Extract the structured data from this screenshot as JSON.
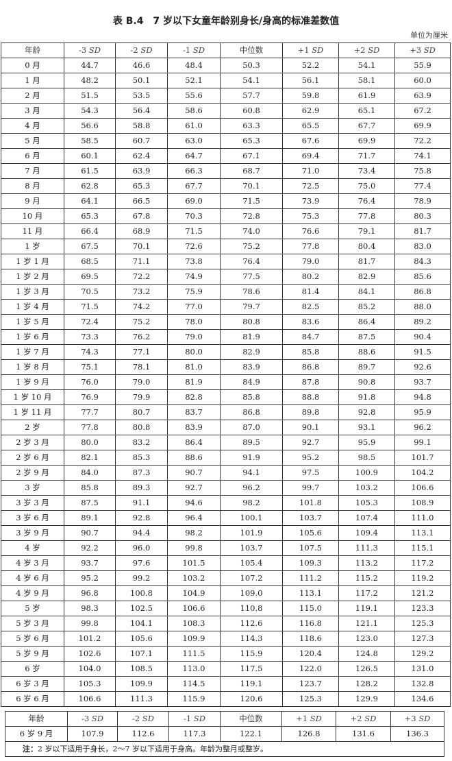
{
  "title": "表 B.4　7 岁以下女童年龄别身长/身高的标准差数值",
  "unit": "单位为厘米",
  "columns": [
    "年龄",
    "-3 SD",
    "-2 SD",
    "-1 SD",
    "中位数",
    "+1 SD",
    "+2 SD",
    "+3 SD"
  ],
  "rows": [
    [
      "0 月",
      "44.7",
      "46.6",
      "48.4",
      "50.3",
      "52.2",
      "54.1",
      "55.9"
    ],
    [
      "1 月",
      "48.2",
      "50.1",
      "52.1",
      "54.1",
      "56.1",
      "58.1",
      "60.0"
    ],
    [
      "2 月",
      "51.5",
      "53.5",
      "55.6",
      "57.7",
      "59.8",
      "61.9",
      "63.9"
    ],
    [
      "3 月",
      "54.3",
      "56.4",
      "58.6",
      "60.8",
      "62.9",
      "65.1",
      "67.2"
    ],
    [
      "4 月",
      "56.6",
      "58.8",
      "61.0",
      "63.3",
      "65.5",
      "67.7",
      "69.9"
    ],
    [
      "5 月",
      "58.5",
      "60.7",
      "63.0",
      "65.3",
      "67.6",
      "69.9",
      "72.2"
    ],
    [
      "6 月",
      "60.1",
      "62.4",
      "64.7",
      "67.1",
      "69.4",
      "71.7",
      "74.1"
    ],
    [
      "7 月",
      "61.5",
      "63.9",
      "66.3",
      "68.7",
      "71.0",
      "73.4",
      "75.8"
    ],
    [
      "8 月",
      "62.8",
      "65.3",
      "67.7",
      "70.1",
      "72.5",
      "75.0",
      "77.4"
    ],
    [
      "9 月",
      "64.1",
      "66.5",
      "69.0",
      "71.5",
      "73.9",
      "76.4",
      "78.9"
    ],
    [
      "10 月",
      "65.3",
      "67.8",
      "70.3",
      "72.8",
      "75.3",
      "77.8",
      "80.3"
    ],
    [
      "11 月",
      "66.4",
      "68.9",
      "71.5",
      "74.0",
      "76.6",
      "79.1",
      "81.7"
    ],
    [
      "1 岁",
      "67.5",
      "70.1",
      "72.6",
      "75.2",
      "77.8",
      "80.4",
      "83.0"
    ],
    [
      "1 岁 1 月",
      "68.5",
      "71.1",
      "73.8",
      "76.4",
      "79.0",
      "81.7",
      "84.3"
    ],
    [
      "1 岁 2 月",
      "69.5",
      "72.2",
      "74.9",
      "77.5",
      "80.2",
      "82.9",
      "85.6"
    ],
    [
      "1 岁 3 月",
      "70.5",
      "73.2",
      "75.9",
      "78.6",
      "81.4",
      "84.1",
      "86.8"
    ],
    [
      "1 岁 4 月",
      "71.5",
      "74.2",
      "77.0",
      "79.7",
      "82.5",
      "85.2",
      "88.0"
    ],
    [
      "1 岁 5 月",
      "72.4",
      "75.2",
      "78.0",
      "80.8",
      "83.6",
      "86.4",
      "89.2"
    ],
    [
      "1 岁 6 月",
      "73.3",
      "76.2",
      "79.0",
      "81.9",
      "84.7",
      "87.5",
      "90.4"
    ],
    [
      "1 岁 7 月",
      "74.3",
      "77.1",
      "80.0",
      "82.9",
      "85.8",
      "88.6",
      "91.5"
    ],
    [
      "1 岁 8 月",
      "75.1",
      "78.1",
      "81.0",
      "83.9",
      "86.8",
      "89.7",
      "92.6"
    ],
    [
      "1 岁 9 月",
      "76.0",
      "79.0",
      "81.9",
      "84.9",
      "87.8",
      "90.8",
      "93.7"
    ],
    [
      "1 岁 10 月",
      "76.9",
      "79.9",
      "82.8",
      "85.8",
      "88.8",
      "91.8",
      "94.8"
    ],
    [
      "1 岁 11 月",
      "77.7",
      "80.7",
      "83.7",
      "86.8",
      "89.8",
      "92.8",
      "95.9"
    ],
    [
      "2 岁",
      "77.8",
      "80.8",
      "83.9",
      "87.0",
      "90.1",
      "93.1",
      "96.2"
    ],
    [
      "2 岁 3 月",
      "80.0",
      "83.2",
      "86.4",
      "89.5",
      "92.7",
      "95.9",
      "99.1"
    ],
    [
      "2 岁 6 月",
      "82.1",
      "85.3",
      "88.6",
      "91.9",
      "95.2",
      "98.5",
      "101.7"
    ],
    [
      "2 岁 9 月",
      "84.0",
      "87.3",
      "90.7",
      "94.1",
      "97.5",
      "100.9",
      "104.2"
    ],
    [
      "3 岁",
      "85.8",
      "89.3",
      "92.7",
      "96.2",
      "99.7",
      "103.2",
      "106.6"
    ],
    [
      "3 岁 3 月",
      "87.5",
      "91.1",
      "94.6",
      "98.2",
      "101.8",
      "105.3",
      "108.9"
    ],
    [
      "3 岁 6 月",
      "89.1",
      "92.8",
      "96.4",
      "100.1",
      "103.7",
      "107.4",
      "111.0"
    ],
    [
      "3 岁 9 月",
      "90.7",
      "94.4",
      "98.2",
      "101.9",
      "105.6",
      "109.4",
      "113.1"
    ],
    [
      "4 岁",
      "92.2",
      "96.0",
      "99.8",
      "103.7",
      "107.5",
      "111.3",
      "115.1"
    ],
    [
      "4 岁 3 月",
      "93.7",
      "97.6",
      "101.5",
      "105.4",
      "109.3",
      "113.2",
      "117.2"
    ],
    [
      "4 岁 6 月",
      "95.2",
      "99.2",
      "103.2",
      "107.2",
      "111.2",
      "115.2",
      "119.2"
    ],
    [
      "4 岁 9 月",
      "96.8",
      "100.8",
      "104.9",
      "109.0",
      "113.1",
      "117.2",
      "121.2"
    ],
    [
      "5 岁",
      "98.3",
      "102.5",
      "106.6",
      "110.8",
      "115.0",
      "119.1",
      "123.3"
    ],
    [
      "5 岁 3 月",
      "99.8",
      "104.1",
      "108.3",
      "112.6",
      "116.8",
      "121.1",
      "125.3"
    ],
    [
      "5 岁 6 月",
      "101.2",
      "105.6",
      "109.9",
      "114.3",
      "118.6",
      "123.0",
      "127.3"
    ],
    [
      "5 岁 9 月",
      "102.6",
      "107.1",
      "111.5",
      "115.9",
      "120.4",
      "124.8",
      "129.2"
    ],
    [
      "6 岁",
      "104.0",
      "108.5",
      "113.0",
      "117.5",
      "122.0",
      "126.5",
      "131.0"
    ],
    [
      "6 岁 3 月",
      "105.3",
      "109.9",
      "114.5",
      "119.1",
      "123.7",
      "128.2",
      "132.8"
    ],
    [
      "6 岁 6 月",
      "106.6",
      "111.3",
      "115.9",
      "120.6",
      "125.3",
      "129.9",
      "134.6"
    ]
  ],
  "extra_rows": [
    [
      "6 岁 9 月",
      "107.9",
      "112.6",
      "117.3",
      "122.1",
      "126.8",
      "131.6",
      "136.3"
    ]
  ],
  "note_label": "注：",
  "note": "2 岁以下适用于身长，2～7 岁以下适用于身高。年龄为整月或整岁。"
}
